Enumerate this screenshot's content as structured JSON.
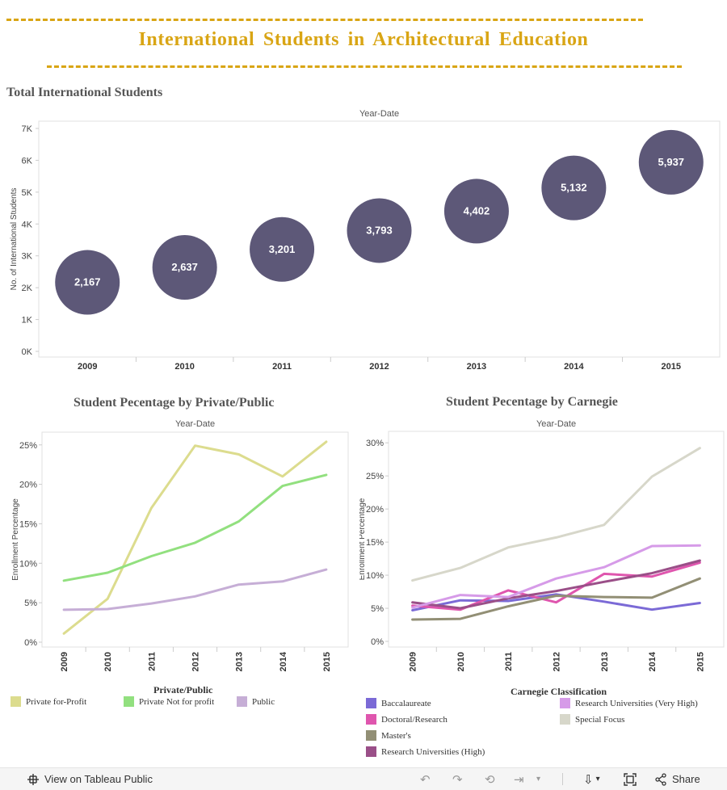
{
  "header": {
    "title": "International Students in Architectural Education"
  },
  "chart_data": [
    {
      "id": "total",
      "type": "scatter",
      "title": "Total International Students",
      "column_header": "Year-Date",
      "ylabel": "No. of International Students",
      "ylim": [
        0,
        7000
      ],
      "yticks": [
        "0K",
        "1K",
        "2K",
        "3K",
        "4K",
        "5K",
        "6K",
        "7K"
      ],
      "categories": [
        "2009",
        "2010",
        "2011",
        "2012",
        "2013",
        "2014",
        "2015"
      ],
      "values": [
        2167,
        2637,
        3201,
        3793,
        4402,
        5132,
        5937
      ],
      "labels": [
        "2,167",
        "2,637",
        "3,201",
        "3,793",
        "4,402",
        "5,132",
        "5,937"
      ],
      "color": "#5d5878"
    },
    {
      "id": "privpub",
      "type": "line",
      "title": "Student Pecentage by Private/Public",
      "column_header": "Year-Date",
      "ylabel": "Enrollment Percentage",
      "ylim": [
        0,
        26
      ],
      "yticks": [
        "0%",
        "5%",
        "10%",
        "15%",
        "20%",
        "25%"
      ],
      "categories": [
        "2009",
        "2010",
        "2011",
        "2012",
        "2013",
        "2014",
        "2015"
      ],
      "legend_title": "Private/Public",
      "series": [
        {
          "name": "Private for-Profit",
          "color": "#dcdc8e",
          "values": [
            1.1,
            5.5,
            17.0,
            24.9,
            23.8,
            21.0,
            25.4
          ]
        },
        {
          "name": "Private Not for profit",
          "color": "#92e07f",
          "values": [
            7.8,
            8.8,
            10.9,
            12.6,
            15.3,
            19.8,
            21.2
          ]
        },
        {
          "name": "Public",
          "color": "#c6aed6",
          "values": [
            4.1,
            4.2,
            4.9,
            5.8,
            7.3,
            7.7,
            9.2
          ]
        }
      ]
    },
    {
      "id": "carnegie",
      "type": "line",
      "title": "Student Pecentage by Carnegie",
      "column_header": "Year-Date",
      "ylabel": "Enrollment Percentage",
      "ylim": [
        0,
        31
      ],
      "yticks": [
        "0%",
        "5%",
        "10%",
        "15%",
        "20%",
        "25%",
        "30%"
      ],
      "categories": [
        "2009",
        "2010",
        "2011",
        "2012",
        "2013",
        "2014",
        "2015"
      ],
      "legend_title": "Carnegie Classification",
      "series": [
        {
          "name": "Baccalaureate",
          "color": "#7b6ad6",
          "values": [
            4.7,
            6.2,
            6.1,
            7.1,
            6.0,
            4.8,
            5.8
          ]
        },
        {
          "name": "Doctoral/Research",
          "color": "#df56ae",
          "values": [
            5.4,
            4.8,
            7.7,
            5.9,
            10.2,
            9.8,
            11.9
          ]
        },
        {
          "name": "Master's",
          "color": "#928f75",
          "values": [
            3.3,
            3.4,
            5.3,
            6.9,
            6.7,
            6.6,
            9.5
          ]
        },
        {
          "name": "Research Universities (High)",
          "color": "#9a4f88",
          "values": [
            5.9,
            5.0,
            6.5,
            7.6,
            9.0,
            10.3,
            12.2
          ]
        },
        {
          "name": "Research Universities (Very High)",
          "color": "#d69be8",
          "values": [
            5.1,
            7.0,
            6.7,
            9.5,
            11.2,
            14.4,
            14.5
          ]
        },
        {
          "name": "Special Focus",
          "color": "#d7d7ca",
          "values": [
            9.2,
            11.1,
            14.2,
            15.7,
            17.6,
            24.9,
            29.2
          ]
        }
      ]
    }
  ],
  "footer": {
    "view_label": "View on Tableau Public",
    "share_label": "Share"
  }
}
